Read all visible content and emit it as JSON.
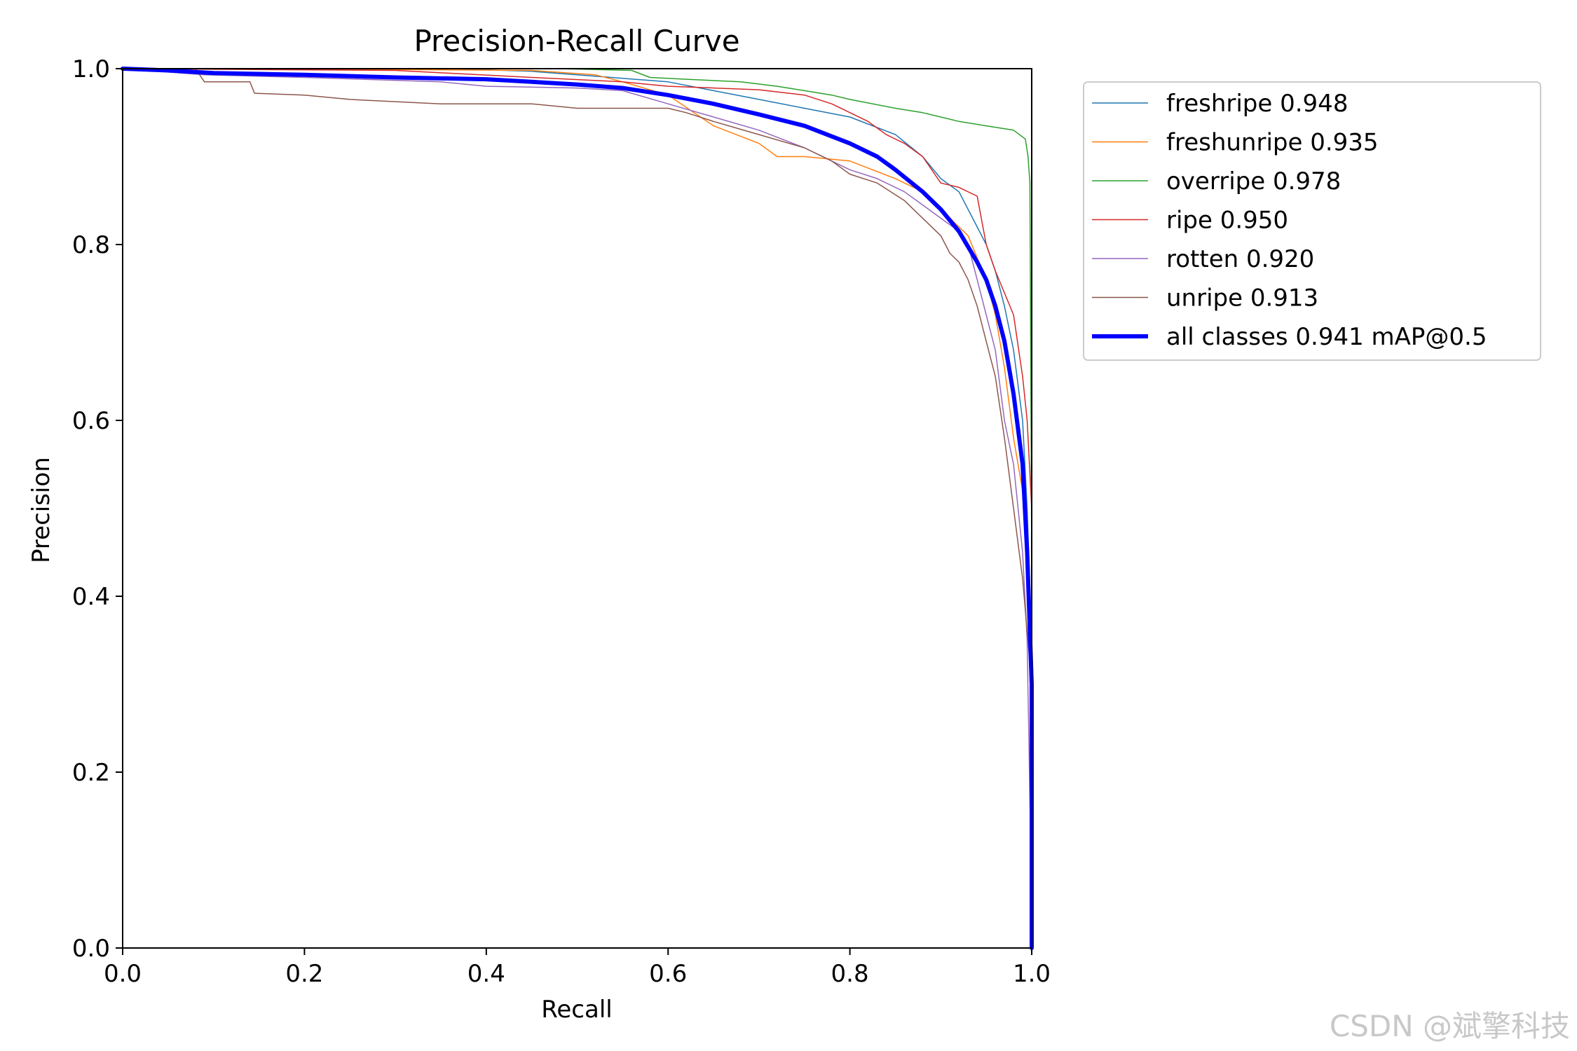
{
  "chart_data": {
    "type": "line",
    "title": "Precision-Recall Curve",
    "xlabel": "Recall",
    "ylabel": "Precision",
    "xlim": [
      0.0,
      1.0
    ],
    "ylim": [
      0.0,
      1.0
    ],
    "xticks": [
      "0.0",
      "0.2",
      "0.4",
      "0.6",
      "0.8",
      "1.0"
    ],
    "yticks": [
      "0.0",
      "0.2",
      "0.4",
      "0.6",
      "0.8",
      "1.0"
    ],
    "grid": false,
    "legend_position": "outside-upper-right",
    "series": [
      {
        "name": "freshripe 0.948",
        "color": "#1f77b4",
        "width": 1.5,
        "points": [
          [
            0,
            1.0
          ],
          [
            0.1,
            1.0
          ],
          [
            0.36,
            1.0
          ],
          [
            0.45,
            0.997
          ],
          [
            0.6,
            0.985
          ],
          [
            0.65,
            0.975
          ],
          [
            0.7,
            0.965
          ],
          [
            0.75,
            0.955
          ],
          [
            0.8,
            0.945
          ],
          [
            0.85,
            0.925
          ],
          [
            0.88,
            0.9
          ],
          [
            0.9,
            0.875
          ],
          [
            0.92,
            0.86
          ],
          [
            0.94,
            0.82
          ],
          [
            0.95,
            0.8
          ],
          [
            0.96,
            0.77
          ],
          [
            0.97,
            0.73
          ],
          [
            0.98,
            0.68
          ],
          [
            0.99,
            0.6
          ],
          [
            0.995,
            0.5
          ],
          [
            1.0,
            0.35
          ],
          [
            1.0,
            0.0
          ]
        ]
      },
      {
        "name": "freshunripe 0.935",
        "color": "#ff7f0e",
        "width": 1.5,
        "points": [
          [
            0,
            1.0
          ],
          [
            0.15,
            1.0
          ],
          [
            0.45,
            0.998
          ],
          [
            0.52,
            0.993
          ],
          [
            0.55,
            0.985
          ],
          [
            0.6,
            0.97
          ],
          [
            0.65,
            0.935
          ],
          [
            0.7,
            0.915
          ],
          [
            0.72,
            0.9
          ],
          [
            0.75,
            0.9
          ],
          [
            0.8,
            0.895
          ],
          [
            0.85,
            0.875
          ],
          [
            0.88,
            0.86
          ],
          [
            0.9,
            0.84
          ],
          [
            0.93,
            0.81
          ],
          [
            0.95,
            0.76
          ],
          [
            0.96,
            0.72
          ],
          [
            0.97,
            0.66
          ],
          [
            0.98,
            0.58
          ],
          [
            0.99,
            0.52
          ],
          [
            0.995,
            0.47
          ],
          [
            1.0,
            0.3
          ],
          [
            1.0,
            0.0
          ]
        ]
      },
      {
        "name": "overripe 0.978",
        "color": "#2ca02c",
        "width": 1.5,
        "points": [
          [
            0,
            1.0
          ],
          [
            0.48,
            1.0
          ],
          [
            0.56,
            0.998
          ],
          [
            0.58,
            0.99
          ],
          [
            0.62,
            0.988
          ],
          [
            0.68,
            0.985
          ],
          [
            0.72,
            0.98
          ],
          [
            0.75,
            0.975
          ],
          [
            0.78,
            0.97
          ],
          [
            0.8,
            0.965
          ],
          [
            0.85,
            0.955
          ],
          [
            0.88,
            0.95
          ],
          [
            0.9,
            0.945
          ],
          [
            0.92,
            0.94
          ],
          [
            0.95,
            0.935
          ],
          [
            0.98,
            0.93
          ],
          [
            0.993,
            0.92
          ],
          [
            0.996,
            0.9
          ],
          [
            0.998,
            0.87
          ],
          [
            1.0,
            0.45
          ],
          [
            1.0,
            0.0
          ]
        ]
      },
      {
        "name": "ripe 0.950",
        "color": "#d62728",
        "width": 1.5,
        "points": [
          [
            0,
            1.0
          ],
          [
            0.3,
            0.998
          ],
          [
            0.45,
            0.99
          ],
          [
            0.55,
            0.985
          ],
          [
            0.6,
            0.98
          ],
          [
            0.65,
            0.978
          ],
          [
            0.7,
            0.976
          ],
          [
            0.75,
            0.97
          ],
          [
            0.78,
            0.96
          ],
          [
            0.82,
            0.94
          ],
          [
            0.84,
            0.925
          ],
          [
            0.86,
            0.915
          ],
          [
            0.88,
            0.9
          ],
          [
            0.9,
            0.87
          ],
          [
            0.92,
            0.865
          ],
          [
            0.94,
            0.855
          ],
          [
            0.95,
            0.8
          ],
          [
            0.96,
            0.77
          ],
          [
            0.97,
            0.745
          ],
          [
            0.98,
            0.72
          ],
          [
            0.99,
            0.65
          ],
          [
            0.995,
            0.6
          ],
          [
            1.0,
            0.5
          ],
          [
            1.0,
            0.0
          ]
        ]
      },
      {
        "name": "rotten 0.920",
        "color": "#9467bd",
        "width": 1.5,
        "points": [
          [
            0,
            1.0
          ],
          [
            0.09,
            0.993
          ],
          [
            0.2,
            0.99
          ],
          [
            0.35,
            0.985
          ],
          [
            0.4,
            0.98
          ],
          [
            0.5,
            0.978
          ],
          [
            0.55,
            0.975
          ],
          [
            0.6,
            0.96
          ],
          [
            0.65,
            0.945
          ],
          [
            0.7,
            0.93
          ],
          [
            0.75,
            0.91
          ],
          [
            0.78,
            0.895
          ],
          [
            0.8,
            0.885
          ],
          [
            0.83,
            0.875
          ],
          [
            0.86,
            0.86
          ],
          [
            0.88,
            0.845
          ],
          [
            0.9,
            0.83
          ],
          [
            0.92,
            0.815
          ],
          [
            0.93,
            0.8
          ],
          [
            0.94,
            0.76
          ],
          [
            0.95,
            0.72
          ],
          [
            0.96,
            0.68
          ],
          [
            0.97,
            0.6
          ],
          [
            0.98,
            0.55
          ],
          [
            0.99,
            0.45
          ],
          [
            0.995,
            0.35
          ],
          [
            1.0,
            0.05
          ],
          [
            1.0,
            0.0
          ]
        ]
      },
      {
        "name": "unripe 0.913",
        "color": "#8c564b",
        "width": 1.5,
        "points": [
          [
            0,
            1.0
          ],
          [
            0.08,
            1.0
          ],
          [
            0.09,
            0.985
          ],
          [
            0.14,
            0.985
          ],
          [
            0.145,
            0.972
          ],
          [
            0.2,
            0.97
          ],
          [
            0.25,
            0.965
          ],
          [
            0.35,
            0.96
          ],
          [
            0.45,
            0.96
          ],
          [
            0.5,
            0.955
          ],
          [
            0.55,
            0.955
          ],
          [
            0.6,
            0.955
          ],
          [
            0.62,
            0.95
          ],
          [
            0.65,
            0.94
          ],
          [
            0.7,
            0.925
          ],
          [
            0.75,
            0.91
          ],
          [
            0.78,
            0.895
          ],
          [
            0.8,
            0.88
          ],
          [
            0.83,
            0.87
          ],
          [
            0.86,
            0.85
          ],
          [
            0.88,
            0.83
          ],
          [
            0.9,
            0.81
          ],
          [
            0.91,
            0.79
          ],
          [
            0.92,
            0.78
          ],
          [
            0.93,
            0.76
          ],
          [
            0.94,
            0.73
          ],
          [
            0.95,
            0.69
          ],
          [
            0.96,
            0.65
          ],
          [
            0.97,
            0.58
          ],
          [
            0.98,
            0.5
          ],
          [
            0.99,
            0.42
          ],
          [
            1.0,
            0.3
          ],
          [
            1.0,
            0.0
          ]
        ]
      },
      {
        "name": "all classes 0.941 mAP@0.5",
        "color": "#0000ff",
        "width": 6,
        "points": [
          [
            0,
            1.0
          ],
          [
            0.05,
            0.998
          ],
          [
            0.1,
            0.995
          ],
          [
            0.2,
            0.993
          ],
          [
            0.3,
            0.99
          ],
          [
            0.4,
            0.988
          ],
          [
            0.45,
            0.985
          ],
          [
            0.5,
            0.982
          ],
          [
            0.55,
            0.978
          ],
          [
            0.6,
            0.97
          ],
          [
            0.65,
            0.96
          ],
          [
            0.7,
            0.948
          ],
          [
            0.75,
            0.935
          ],
          [
            0.8,
            0.915
          ],
          [
            0.83,
            0.9
          ],
          [
            0.85,
            0.885
          ],
          [
            0.88,
            0.86
          ],
          [
            0.9,
            0.84
          ],
          [
            0.92,
            0.815
          ],
          [
            0.94,
            0.78
          ],
          [
            0.95,
            0.76
          ],
          [
            0.96,
            0.73
          ],
          [
            0.97,
            0.69
          ],
          [
            0.98,
            0.63
          ],
          [
            0.99,
            0.55
          ],
          [
            0.995,
            0.45
          ],
          [
            1.0,
            0.3
          ],
          [
            1.0,
            0.0
          ]
        ]
      }
    ]
  },
  "watermark": "CSDN @斌擎科技"
}
